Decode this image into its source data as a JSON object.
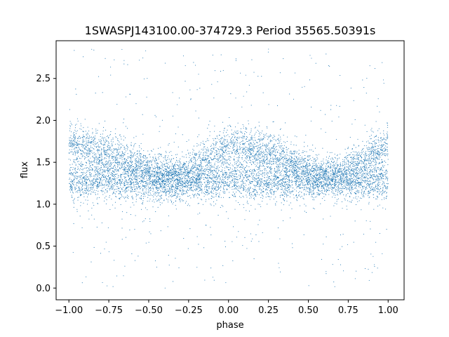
{
  "chart_data": {
    "type": "scatter",
    "title": "1SWASPJ143100.00-374729.3 Period 35565.50391s",
    "xlabel": "phase",
    "ylabel": "flux",
    "xlim": [
      -1.08,
      1.1
    ],
    "ylim": [
      -0.14,
      2.95
    ],
    "xticks": [
      -1.0,
      -0.75,
      -0.5,
      -0.25,
      0.0,
      0.25,
      0.5,
      0.75,
      1.0
    ],
    "xtick_labels": [
      "−1.00",
      "−0.75",
      "−0.50",
      "−0.25",
      "0.00",
      "0.25",
      "0.50",
      "0.75",
      "1.00"
    ],
    "yticks": [
      0.0,
      0.5,
      1.0,
      1.5,
      2.0,
      2.5
    ],
    "ytick_labels": [
      "0.0",
      "0.5",
      "1.0",
      "1.5",
      "2.0",
      "2.5"
    ],
    "grid": false,
    "point_color": "#1f77b4",
    "series": [
      {
        "model": {
          "x_range": [
            -1.0,
            1.0
          ],
          "baseline_flux": 1.28,
          "upper_band_flux": [
            [
              -1.0,
              1.72
            ],
            [
              -0.75,
              1.62
            ],
            [
              -0.5,
              1.42
            ],
            [
              -0.3,
              1.32
            ],
            [
              0.0,
              1.72
            ],
            [
              0.25,
              1.62
            ],
            [
              0.5,
              1.42
            ],
            [
              0.7,
              1.32
            ],
            [
              1.0,
              1.72
            ]
          ],
          "scatter_sigma": 0.12,
          "outlier_flux_range": [
            0.0,
            2.85
          ]
        }
      }
    ]
  }
}
